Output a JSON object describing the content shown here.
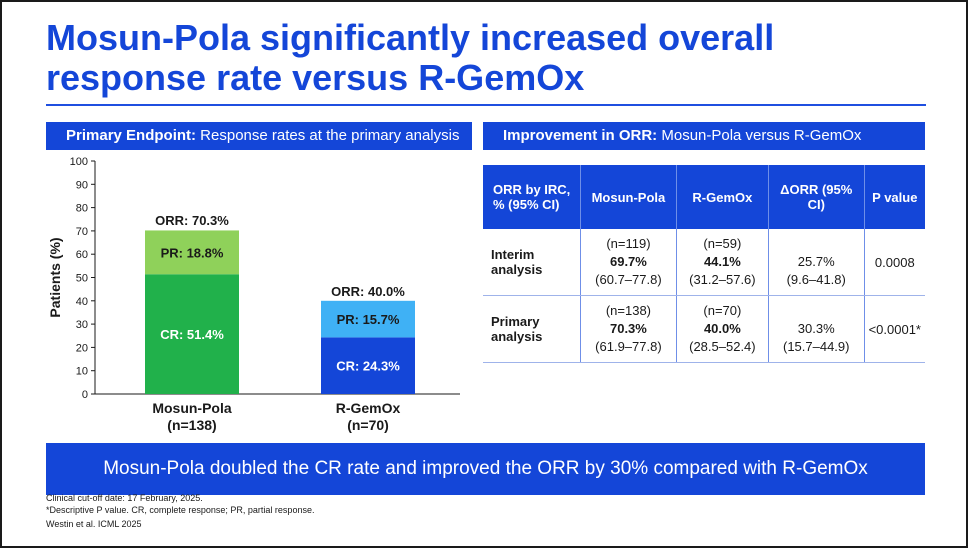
{
  "slide": {
    "title": "Mosun-Pola significantly increased overall response rate versus R-GemOx",
    "left_header": {
      "bold": "Primary Endpoint:",
      "text": " Response rates at the primary analysis"
    },
    "right_header": {
      "bold": "Improvement in ORR:",
      "text": " Mosun-Pola versus R-GemOx"
    },
    "banner": "Mosun-Pola doubled the CR rate and improved the ORR by 30% compared with R-GemOx",
    "footnotes": [
      "Clinical cut-off date: 17 February, 2025.",
      "*Descriptive P value. CR, complete response; PR, partial response.",
      "Westin et al. ICML 2025"
    ],
    "colors": {
      "brand_blue": "#1446d8",
      "cr_green": "#21b14b",
      "pr_green": "#8fd15a",
      "cr_blue": "#1446d8",
      "pr_blue": "#3fb1f5"
    }
  },
  "chart_data": {
    "type": "bar",
    "stacked": true,
    "categories": [
      "Mosun-Pola",
      "R-GemOx"
    ],
    "category_subtitles": [
      "(n=138)",
      "(n=70)"
    ],
    "ylabel": "Patients (%)",
    "ylim": [
      0,
      100
    ],
    "yticks": [
      0,
      10,
      20,
      30,
      40,
      50,
      60,
      70,
      80,
      90,
      100
    ],
    "series": [
      {
        "name": "CR",
        "values": [
          51.4,
          24.3
        ],
        "labels": [
          "CR: 51.4%",
          "CR: 24.3%"
        ],
        "colors": [
          "#21b14b",
          "#1446d8"
        ]
      },
      {
        "name": "PR",
        "values": [
          18.8,
          15.7
        ],
        "labels": [
          "PR: 18.8%",
          "PR: 15.7%"
        ],
        "colors": [
          "#8fd15a",
          "#3fb1f5"
        ]
      }
    ],
    "totals": [
      70.3,
      40.0
    ],
    "total_labels": [
      "ORR: 70.3%",
      "ORR: 40.0%"
    ]
  },
  "table": {
    "headers": [
      "ORR by IRC, % (95% CI)",
      "Mosun-Pola",
      "R-GemOx",
      "ΔORR (95% CI)",
      "P value"
    ],
    "rows": [
      {
        "label": "Interim analysis",
        "mosun": {
          "n": "(n=119)",
          "value": "69.7%",
          "ci": "(60.7–77.8)"
        },
        "rgemox": {
          "n": "(n=59)",
          "value": "44.1%",
          "ci": "(31.2–57.6)"
        },
        "delta": {
          "value": "25.7%",
          "ci": "(9.6–41.8)"
        },
        "p": "0.0008"
      },
      {
        "label": "Primary analysis",
        "mosun": {
          "n": "(n=138)",
          "value": "70.3%",
          "ci": "(61.9–77.8)"
        },
        "rgemox": {
          "n": "(n=70)",
          "value": "40.0%",
          "ci": "(28.5–52.4)"
        },
        "delta": {
          "value": "30.3%",
          "ci": "(15.7–44.9)"
        },
        "p": "<0.0001*"
      }
    ]
  }
}
